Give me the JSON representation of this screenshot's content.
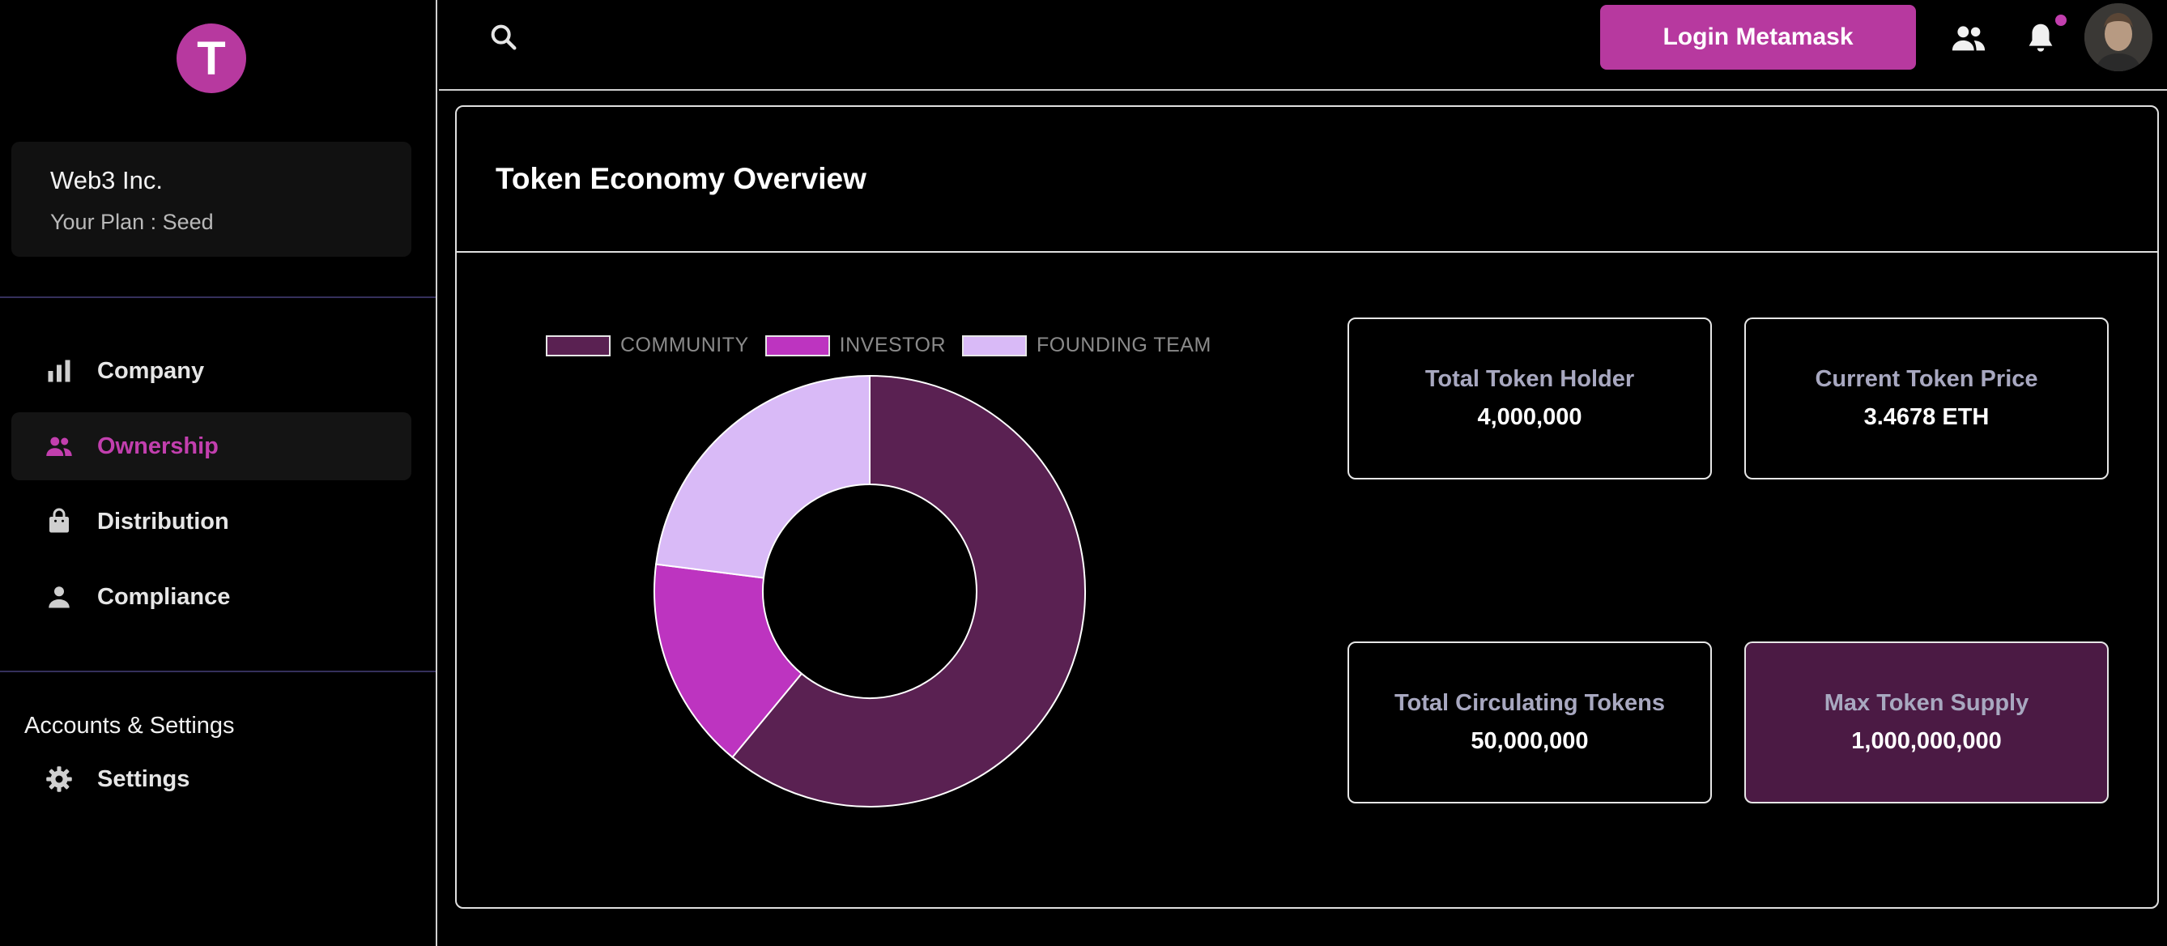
{
  "brand": {
    "logo_letter": "T",
    "color": "#b7399f"
  },
  "org": {
    "name": "Web3 Inc.",
    "plan": "Your Plan : Seed"
  },
  "nav": {
    "items": [
      {
        "label": "Company",
        "icon": "bar-chart-icon",
        "active": false
      },
      {
        "label": "Ownership",
        "icon": "people-icon",
        "active": true
      },
      {
        "label": "Distribution",
        "icon": "shopping-bag-icon",
        "active": false
      },
      {
        "label": "Compliance",
        "icon": "person-icon",
        "active": false
      }
    ],
    "section_title": "Accounts & Settings",
    "settings_label": "Settings"
  },
  "topbar": {
    "login_label": "Login Metamask",
    "icons": [
      "search-icon",
      "people-icon",
      "bell-icon",
      "avatar"
    ]
  },
  "panel": {
    "title": "Token Economy Overview",
    "stats": [
      {
        "label": "Total Token Holder",
        "value": "4,000,000"
      },
      {
        "label": "Current Token Price",
        "value": "3.4678 ETH"
      },
      {
        "label": "Total Circulating Tokens",
        "value": "50,000,000"
      },
      {
        "label": "Max Token Supply",
        "value": "1,000,000,000",
        "highlight": true
      }
    ]
  },
  "chart_data": {
    "type": "pie",
    "donut": true,
    "categories": [
      "COMMUNITY",
      "INVESTOR",
      "FOUNDING TEAM"
    ],
    "values": [
      61,
      16,
      23
    ],
    "colors": [
      "#5a2152",
      "#bd34c0",
      "#d9baf7"
    ],
    "legend_position": "top"
  }
}
